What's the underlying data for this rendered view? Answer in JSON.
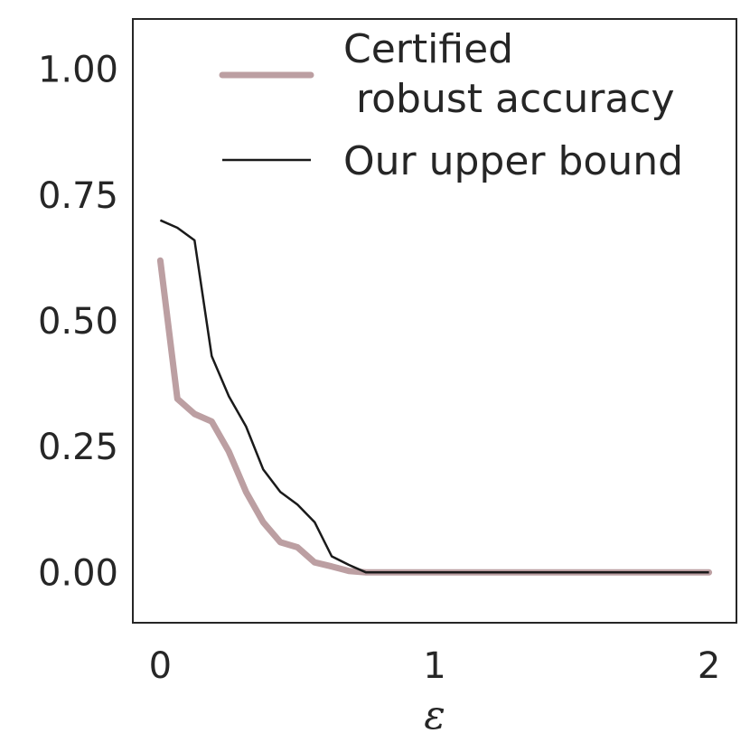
{
  "chart_data": {
    "type": "line",
    "title": "",
    "xlabel": "ε",
    "ylabel": "",
    "xlim": [
      -0.1,
      2.1
    ],
    "ylim": [
      -0.1,
      1.1
    ],
    "xticks": [
      0,
      1,
      2
    ],
    "xtick_labels": [
      "0",
      "1",
      "2"
    ],
    "yticks": [
      0,
      0.25,
      0.5,
      0.75,
      1.0
    ],
    "ytick_labels": [
      "0.00",
      "0.25",
      "0.50",
      "0.75",
      "1.00"
    ],
    "grid": false,
    "legend_position": "top-right",
    "legend": {
      "line1": "Certified",
      "line2": " robust accuracy",
      "upper": "Our upper bound"
    },
    "series": [
      {
        "name": "Certified robust accuracy",
        "color": "#bc9fa2",
        "x": [
          0,
          0.0625,
          0.125,
          0.1875,
          0.25,
          0.3125,
          0.375,
          0.4375,
          0.5,
          0.5625,
          0.625,
          0.6875,
          0.75,
          1.0,
          1.5,
          2.0
        ],
        "y": [
          0.62,
          0.345,
          0.315,
          0.3,
          0.24,
          0.16,
          0.1,
          0.06,
          0.05,
          0.02,
          0.012,
          0.003,
          0.0,
          0.0,
          0.0,
          0.0
        ]
      },
      {
        "name": "Our upper bound",
        "color": "#1a1a1a",
        "x": [
          0,
          0.0625,
          0.125,
          0.1875,
          0.25,
          0.3125,
          0.375,
          0.4375,
          0.5,
          0.5625,
          0.625,
          0.6875,
          0.75,
          1.0,
          1.5,
          2.0
        ],
        "y": [
          0.7,
          0.685,
          0.66,
          0.43,
          0.35,
          0.29,
          0.205,
          0.16,
          0.135,
          0.1,
          0.032,
          0.015,
          0.0,
          0.0,
          0.0,
          0.0
        ]
      }
    ]
  }
}
